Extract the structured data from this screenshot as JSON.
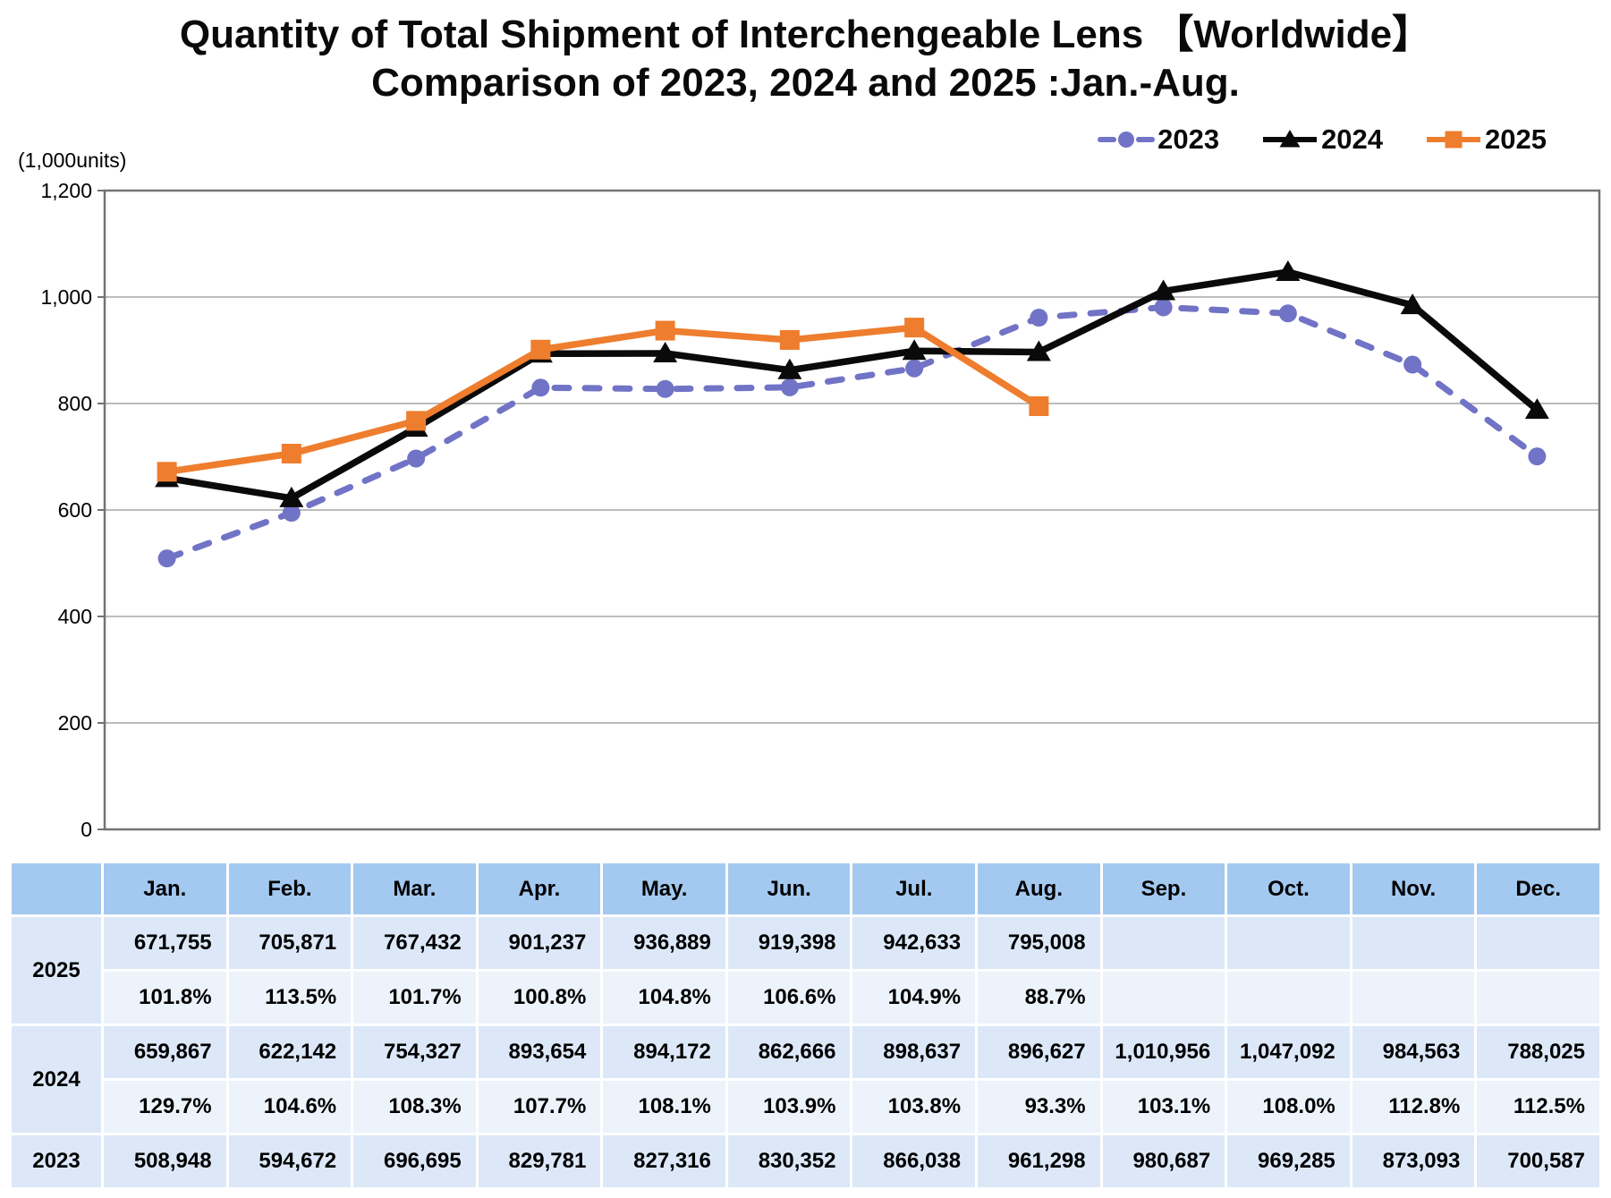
{
  "title": {
    "line1": "Quantity of Total Shipment of Interchengeable Lens 【Worldwide】",
    "line2": "Comparison of 2023, 2024 and 2025 :Jan.-Aug."
  },
  "chart_data": {
    "type": "line",
    "title": "Quantity of Total Shipment of Interchengeable Lens 【Worldwide】",
    "subtitle": "Comparison of 2023, 2024 and 2025 :Jan.-Aug.",
    "unit_label": "(1,000units)",
    "categories": [
      "Jan.",
      "Feb.",
      "Mar.",
      "Apr.",
      "May.",
      "Jun.",
      "Jul.",
      "Aug.",
      "Sep.",
      "Oct.",
      "Nov.",
      "Dec."
    ],
    "ylim": [
      0,
      1200
    ],
    "ytick_step": 200,
    "grid": "horizontal",
    "legend_position": "top-right",
    "series": [
      {
        "name": "2023",
        "color": "#7173C6",
        "style": "dashed",
        "marker": "circle",
        "values": [
          508.948,
          594.672,
          696.695,
          829.781,
          827.316,
          830.352,
          866.038,
          961.298,
          980.687,
          969.285,
          873.093,
          700.587
        ]
      },
      {
        "name": "2024",
        "color": "#0A0A0A",
        "style": "solid",
        "marker": "triangle",
        "values": [
          659.867,
          622.142,
          754.327,
          893.654,
          894.172,
          862.666,
          898.637,
          896.627,
          1010.956,
          1047.092,
          984.563,
          788.025
        ]
      },
      {
        "name": "2025",
        "color": "#EE7D2E",
        "style": "solid",
        "marker": "square",
        "values": [
          671.755,
          705.871,
          767.432,
          901.237,
          936.889,
          919.398,
          942.633,
          795.008
        ]
      }
    ]
  },
  "table": {
    "columns": [
      "Jan.",
      "Feb.",
      "Mar.",
      "Apr.",
      "May.",
      "Jun.",
      "Jul.",
      "Aug.",
      "Sep.",
      "Oct.",
      "Nov.",
      "Dec."
    ],
    "row_groups": [
      {
        "label": "2025",
        "values": [
          "671,755",
          "705,871",
          "767,432",
          "901,237",
          "936,889",
          "919,398",
          "942,633",
          "795,008",
          "",
          "",
          "",
          ""
        ],
        "pcts": [
          "101.8%",
          "113.5%",
          "101.7%",
          "100.8%",
          "104.8%",
          "106.6%",
          "104.9%",
          "88.7%",
          "",
          "",
          "",
          ""
        ]
      },
      {
        "label": "2024",
        "values": [
          "659,867",
          "622,142",
          "754,327",
          "893,654",
          "894,172",
          "862,666",
          "898,637",
          "896,627",
          "1,010,956",
          "1,047,092",
          "984,563",
          "788,025"
        ],
        "pcts": [
          "129.7%",
          "104.6%",
          "108.3%",
          "107.7%",
          "108.1%",
          "103.9%",
          "103.8%",
          "93.3%",
          "103.1%",
          "108.0%",
          "112.8%",
          "112.5%"
        ]
      },
      {
        "label": "2023",
        "values": [
          "508,948",
          "594,672",
          "696,695",
          "829,781",
          "827,316",
          "830,352",
          "866,038",
          "961,298",
          "980,687",
          "969,285",
          "873,093",
          "700,587"
        ],
        "pcts": null
      }
    ]
  },
  "colors": {
    "grid_line": "#A6A6A6",
    "plot_border": "#737373",
    "table_header_bg": "#A3C9F1",
    "table_value_row_bg": "#DCE8F8",
    "table_pct_row_bg": "#EDF3FB"
  }
}
